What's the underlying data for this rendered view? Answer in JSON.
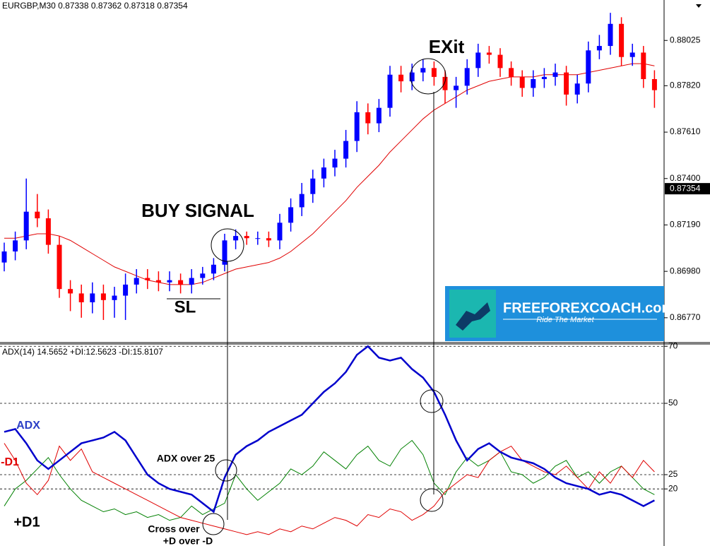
{
  "chart_data": [
    {
      "type": "candlestick",
      "title": "EURGBP,M30  0.87338 0.87362 0.87318 0.87354",
      "open": [
        0.8702,
        0.8707,
        0.8712,
        0.8725,
        0.8722,
        0.871,
        0.869,
        0.8688,
        0.8684,
        0.8688,
        0.8685,
        0.8687,
        0.8692,
        0.8695,
        0.8694,
        0.8693,
        0.8694,
        0.8692,
        0.8695,
        0.8697,
        0.8701,
        0.8712,
        0.8714,
        0.8713,
        0.8713,
        0.8712,
        0.872,
        0.8727,
        0.8733,
        0.874,
        0.8745,
        0.8749,
        0.8757,
        0.877,
        0.8765,
        0.8772,
        0.8787,
        0.8784,
        0.8788,
        0.879,
        0.8786,
        0.878,
        0.8782,
        0.879,
        0.8797,
        0.8796,
        0.879,
        0.8786,
        0.8781,
        0.8785,
        0.8786,
        0.8788,
        0.8778,
        0.8783,
        0.8798,
        0.88,
        0.881,
        0.8795,
        0.8797,
        0.8785
      ],
      "high": [
        0.8711,
        0.8716,
        0.874,
        0.8733,
        0.8726,
        0.8714,
        0.8694,
        0.8692,
        0.8693,
        0.8692,
        0.8691,
        0.8697,
        0.8699,
        0.8699,
        0.8698,
        0.8698,
        0.8697,
        0.8699,
        0.87,
        0.8704,
        0.8715,
        0.8717,
        0.8716,
        0.8716,
        0.8716,
        0.8724,
        0.8731,
        0.8738,
        0.8744,
        0.8749,
        0.8753,
        0.8762,
        0.8775,
        0.8774,
        0.8776,
        0.8791,
        0.8791,
        0.8792,
        0.8794,
        0.8793,
        0.8789,
        0.8786,
        0.8794,
        0.8801,
        0.88,
        0.8799,
        0.8793,
        0.8789,
        0.8789,
        0.879,
        0.8792,
        0.8791,
        0.8787,
        0.8802,
        0.8805,
        0.8815,
        0.8813,
        0.8801,
        0.88,
        0.8789
      ],
      "low": [
        0.8698,
        0.8703,
        0.8708,
        0.8718,
        0.8706,
        0.8686,
        0.868,
        0.8677,
        0.8679,
        0.8676,
        0.8677,
        0.8676,
        0.8688,
        0.869,
        0.8689,
        0.8689,
        0.8688,
        0.8688,
        0.8692,
        0.8694,
        0.8698,
        0.8708,
        0.871,
        0.871,
        0.8709,
        0.8708,
        0.8716,
        0.8723,
        0.8729,
        0.8736,
        0.8741,
        0.8745,
        0.8752,
        0.876,
        0.8761,
        0.8768,
        0.8779,
        0.878,
        0.8784,
        0.8782,
        0.8774,
        0.8772,
        0.8778,
        0.8786,
        0.8792,
        0.8786,
        0.8782,
        0.8777,
        0.8777,
        0.8781,
        0.8782,
        0.8773,
        0.8774,
        0.8779,
        0.8794,
        0.8796,
        0.8791,
        0.8791,
        0.8781,
        0.8772
      ],
      "close": [
        0.8707,
        0.8712,
        0.8725,
        0.8722,
        0.871,
        0.869,
        0.8688,
        0.8684,
        0.8688,
        0.8685,
        0.8687,
        0.8692,
        0.8695,
        0.8694,
        0.8693,
        0.8694,
        0.8692,
        0.8695,
        0.8697,
        0.8701,
        0.8712,
        0.8714,
        0.8713,
        0.8713,
        0.8712,
        0.872,
        0.8727,
        0.8733,
        0.874,
        0.8745,
        0.8749,
        0.8757,
        0.877,
        0.8765,
        0.8772,
        0.8787,
        0.8784,
        0.8788,
        0.879,
        0.8786,
        0.878,
        0.8782,
        0.879,
        0.8797,
        0.8796,
        0.879,
        0.8786,
        0.8781,
        0.8785,
        0.8786,
        0.8788,
        0.8778,
        0.8783,
        0.8798,
        0.88,
        0.881,
        0.8795,
        0.8797,
        0.8785,
        0.878
      ],
      "up_color": "#0000ff",
      "down_color": "#ff0000",
      "ma": {
        "color": "#e00000",
        "values": [
          0.8713,
          0.8713,
          0.8714,
          0.8715,
          0.8715,
          0.8714,
          0.8712,
          0.8709,
          0.8706,
          0.8703,
          0.87,
          0.8698,
          0.8696,
          0.8694,
          0.8693,
          0.8692,
          0.8692,
          0.8692,
          0.8693,
          0.8695,
          0.8697,
          0.8699,
          0.87,
          0.8701,
          0.8702,
          0.8704,
          0.8707,
          0.8711,
          0.8715,
          0.872,
          0.8725,
          0.873,
          0.8736,
          0.8741,
          0.8746,
          0.8752,
          0.8757,
          0.8762,
          0.8767,
          0.8771,
          0.8774,
          0.8777,
          0.878,
          0.8782,
          0.8784,
          0.8785,
          0.8786,
          0.8786,
          0.8786,
          0.8787,
          0.8787,
          0.8787,
          0.8787,
          0.8788,
          0.8789,
          0.879,
          0.8791,
          0.8792,
          0.8792,
          0.8791
        ]
      },
      "ylim": [
        0.86664,
        0.88208
      ],
      "yticks": [
        {
          "value": 0.8677,
          "label": "0.86770"
        },
        {
          "value": 0.8698,
          "label": "0.86980"
        },
        {
          "value": 0.8719,
          "label": "0.87190"
        },
        {
          "value": 0.874,
          "label": "0.87400"
        },
        {
          "value": 0.8761,
          "label": "0.87610"
        },
        {
          "value": 0.8782,
          "label": "0.87820"
        },
        {
          "value": 0.88025,
          "label": "0.88025"
        }
      ],
      "last_price": 0.87354,
      "annotations": [
        "BUY SIGNAL",
        "SL",
        "EXit"
      ]
    },
    {
      "type": "line",
      "title": "ADX(14) 14.5652 +DI:12.5623 -DI:15.8107",
      "series": [
        {
          "name": "ADX",
          "color": "#0000cc",
          "values": [
            40,
            41,
            36,
            30,
            27,
            30,
            33,
            36,
            37,
            38,
            40,
            37,
            31,
            25,
            22,
            20,
            19,
            18,
            15,
            12,
            24,
            32,
            35,
            37,
            40,
            42,
            44,
            46,
            50,
            54,
            57,
            61,
            67,
            70,
            66,
            65,
            66,
            62,
            59,
            54,
            46,
            37,
            30,
            34,
            36,
            33,
            31,
            30,
            29,
            27,
            24,
            22,
            21,
            20,
            18,
            19,
            18,
            16,
            14,
            16
          ]
        },
        {
          "name": "-D1",
          "color": "#e00000",
          "values": [
            36,
            30,
            22,
            18,
            23,
            35,
            30,
            34,
            26,
            24,
            22,
            20,
            18,
            16,
            14,
            12,
            10,
            9,
            8,
            7,
            6,
            5,
            4,
            5,
            4,
            6,
            5,
            7,
            6,
            8,
            10,
            9,
            7,
            11,
            10,
            13,
            12,
            9,
            11,
            14,
            19,
            22,
            25,
            24,
            30,
            33,
            35,
            30,
            28,
            26,
            25,
            28,
            24,
            20,
            26,
            22,
            28,
            24,
            30,
            26
          ]
        },
        {
          "name": "+D1",
          "color": "#008000",
          "values": [
            14,
            20,
            23,
            27,
            31,
            25,
            20,
            16,
            14,
            12,
            13,
            11,
            12,
            10,
            11,
            9,
            10,
            14,
            11,
            13,
            15,
            25,
            20,
            16,
            19,
            22,
            27,
            25,
            28,
            33,
            30,
            27,
            32,
            35,
            30,
            28,
            34,
            37,
            32,
            22,
            18,
            26,
            31,
            28,
            30,
            33,
            26,
            25,
            22,
            24,
            28,
            30,
            24,
            26,
            22,
            26,
            28,
            24,
            20,
            18
          ]
        }
      ],
      "ylim": [
        0,
        70.8
      ],
      "yticks": [
        20,
        25,
        50,
        70
      ],
      "annotations": [
        "ADX over 25",
        "Cross over",
        "+D over -D"
      ]
    }
  ],
  "logo": {
    "name": "FREEFOREXCOACH.com",
    "tagline": "Ride The Market"
  }
}
